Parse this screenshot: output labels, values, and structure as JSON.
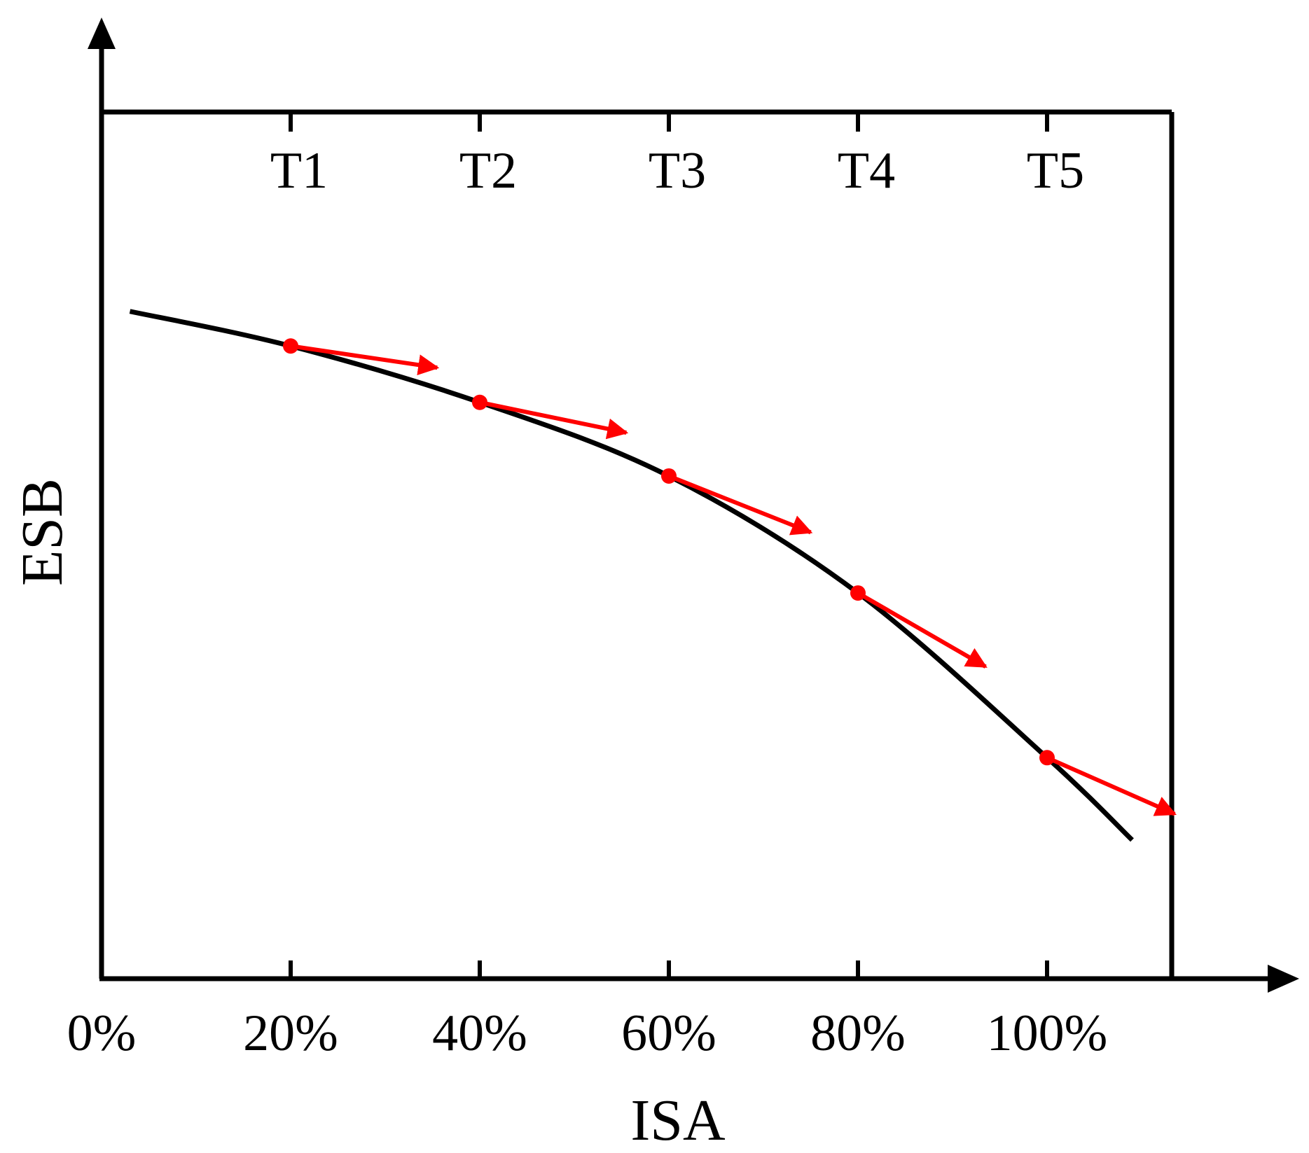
{
  "chart_data": {
    "type": "line",
    "title": "",
    "xlabel": "ISA",
    "ylabel": "ESB",
    "x_ticks": [
      {
        "value": 0,
        "label": "0%"
      },
      {
        "value": 20,
        "label": "20%"
      },
      {
        "value": 40,
        "label": "40%"
      },
      {
        "value": 60,
        "label": "60%"
      },
      {
        "value": 80,
        "label": "80%"
      },
      {
        "value": 100,
        "label": "100%"
      }
    ],
    "top_ticks": [
      {
        "value": 20,
        "label": "T1"
      },
      {
        "value": 40,
        "label": "T2"
      },
      {
        "value": 60,
        "label": "T3"
      },
      {
        "value": 80,
        "label": "T4"
      },
      {
        "value": 100,
        "label": "T5"
      }
    ],
    "xlim": [
      0,
      114
    ],
    "ylim": [
      0,
      100
    ],
    "curve": {
      "color": "#000000",
      "x": [
        3,
        20,
        40,
        60,
        80,
        100,
        109
      ],
      "y": [
        77,
        73,
        66.5,
        58,
        44.5,
        25.5,
        16
      ]
    },
    "points": {
      "color": "#ff0000",
      "x": [
        20,
        40,
        60,
        80,
        100
      ],
      "y": [
        73,
        66.5,
        58,
        44.5,
        25.5
      ]
    },
    "tangent_arrows": {
      "color": "#ff0000",
      "items": [
        {
          "x0": 20,
          "y0": 73,
          "x1": 35.5,
          "y1": 70.5
        },
        {
          "x0": 40,
          "y0": 66.5,
          "x1": 55.5,
          "y1": 63
        },
        {
          "x0": 60,
          "y0": 58,
          "x1": 75,
          "y1": 51.5
        },
        {
          "x0": 80,
          "y0": 44.5,
          "x1": 93.5,
          "y1": 36
        },
        {
          "x0": 100,
          "y0": 25.5,
          "x1": 113.5,
          "y1": 19
        }
      ]
    },
    "grid": false,
    "legend": "none"
  }
}
